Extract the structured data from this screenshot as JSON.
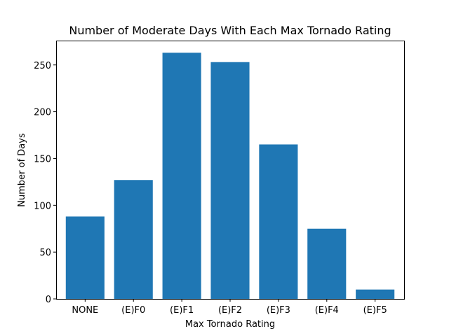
{
  "chart_data": {
    "type": "bar",
    "title": "Number of Moderate Days With Each Max Tornado Rating",
    "xlabel": "Max Tornado Rating",
    "ylabel": "Number of Days",
    "categories": [
      "NONE",
      "(E)F0",
      "(E)F1",
      "(E)F2",
      "(E)F3",
      "(E)F4",
      "(E)F5"
    ],
    "values": [
      88,
      127,
      263,
      253,
      165,
      75,
      10
    ],
    "ylim": [
      0,
      276
    ],
    "yticks": [
      0,
      50,
      100,
      150,
      200,
      250
    ],
    "grid": false,
    "bar_color": "#1f77b4"
  }
}
